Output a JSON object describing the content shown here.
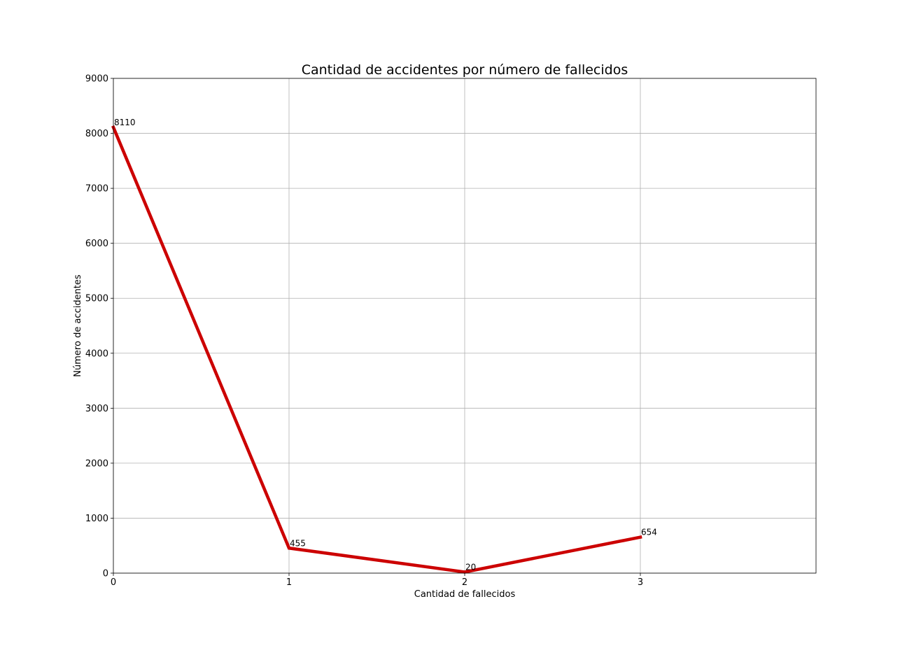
{
  "chart_data": {
    "type": "line",
    "title": "Cantidad de accidentes por número de fallecidos",
    "xlabel": "Cantidad de fallecidos",
    "ylabel": "Número de accidentes",
    "x": [
      0,
      1,
      2,
      3
    ],
    "xlim": [
      0,
      4
    ],
    "ylim": [
      0,
      9000
    ],
    "x_ticks": [
      0,
      1,
      2,
      3
    ],
    "x_tick_labels": [
      "0",
      "1",
      "2",
      "3"
    ],
    "y_ticks": [
      0,
      1000,
      2000,
      3000,
      4000,
      5000,
      6000,
      7000,
      8000,
      9000
    ],
    "y_tick_labels": [
      "0",
      "1000",
      "2000",
      "3000",
      "4000",
      "5000",
      "6000",
      "7000",
      "8000",
      "9000"
    ],
    "series": [
      {
        "values": [
          8110,
          455,
          20,
          654
        ],
        "data_labels": [
          "8110",
          "455",
          "20",
          "654"
        ],
        "color": "#cc0000"
      }
    ],
    "grid": true,
    "legend": false
  }
}
